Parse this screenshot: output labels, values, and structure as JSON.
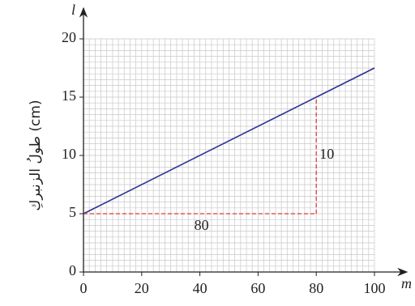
{
  "chart_data": {
    "type": "line",
    "x_label": "m",
    "y_label": "l",
    "y_title": "طولُ الزنبركِ (cm)",
    "x": [
      0,
      80,
      100
    ],
    "series": [
      {
        "color": "#2e3192",
        "values": [
          5,
          15,
          17.5
        ]
      }
    ],
    "xlim": [
      0,
      100
    ],
    "ylim": [
      0,
      20
    ],
    "xticks": [
      0,
      20,
      40,
      60,
      80,
      100
    ],
    "yticks": [
      0,
      5,
      10,
      15,
      20
    ],
    "grid": true,
    "grid_step": {
      "x": 2,
      "y": 0.5
    },
    "guide_color": "#e0393e",
    "annotations": [
      {
        "text": "80"
      },
      {
        "text": "10"
      }
    ]
  }
}
